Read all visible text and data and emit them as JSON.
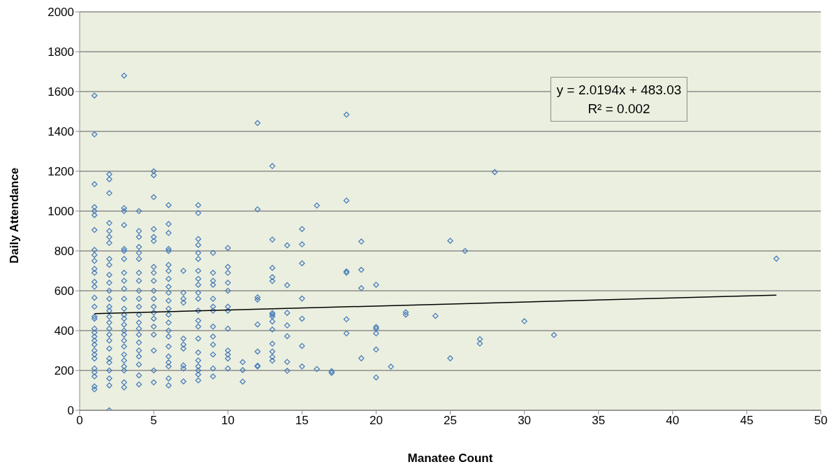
{
  "chart_data": {
    "type": "scatter",
    "xlabel": "Manatee Count",
    "ylabel": "Daily Attendance",
    "xlim": [
      0,
      50
    ],
    "xticks": [
      0,
      5,
      10,
      15,
      20,
      25,
      30,
      35,
      40,
      45,
      50
    ],
    "ylim": [
      0,
      2000
    ],
    "yticks": [
      0,
      200,
      400,
      600,
      800,
      1000,
      1200,
      1400,
      1600,
      1800,
      2000
    ],
    "grid": "y",
    "legend": false,
    "annotations": [
      "y = 2.0194x + 483.03",
      "R² = 0.002"
    ],
    "series": [
      {
        "color": "#4a7ebb",
        "marker": "diamond",
        "x": [
          1,
          1,
          1,
          1,
          1,
          1,
          1,
          1,
          1,
          1,
          1,
          1,
          1,
          1,
          1,
          1,
          1,
          1,
          1,
          1,
          1,
          1,
          1,
          1,
          1,
          1,
          1,
          1,
          1,
          1,
          1,
          2,
          2,
          2,
          2,
          2,
          2,
          2,
          2,
          2,
          2,
          2,
          2,
          2,
          2,
          2,
          2,
          2,
          2,
          2,
          2,
          2,
          2,
          2,
          2,
          2,
          2,
          2,
          3,
          3,
          3,
          3,
          3,
          3,
          3,
          3,
          3,
          3,
          3,
          3,
          3,
          3,
          3,
          3,
          3,
          3,
          3,
          3,
          3,
          3,
          3,
          3,
          3,
          4,
          4,
          4,
          4,
          4,
          4,
          4,
          4,
          4,
          4,
          4,
          4,
          4,
          4,
          4,
          4,
          4,
          4,
          4,
          4,
          4,
          5,
          5,
          5,
          5,
          5,
          5,
          5,
          5,
          5,
          5,
          5,
          5,
          5,
          5,
          5,
          5,
          5,
          5,
          5,
          6,
          6,
          6,
          6,
          6,
          6,
          6,
          6,
          6,
          6,
          6,
          6,
          6,
          6,
          6,
          6,
          6,
          6,
          6,
          6,
          6,
          6,
          7,
          7,
          7,
          7,
          7,
          7,
          7,
          7,
          7,
          7,
          8,
          8,
          8,
          8,
          8,
          8,
          8,
          8,
          8,
          8,
          8,
          8,
          8,
          8,
          8,
          8,
          8,
          8,
          8,
          8,
          8,
          9,
          9,
          9,
          9,
          9,
          9,
          9,
          9,
          9,
          9,
          9,
          9,
          9,
          10,
          10,
          10,
          10,
          10,
          10,
          10,
          10,
          10,
          10,
          10,
          10,
          11,
          11,
          11,
          12,
          12,
          12,
          12,
          12,
          12,
          12,
          12,
          13,
          13,
          13,
          13,
          13,
          13,
          13,
          13,
          13,
          13,
          13,
          13,
          13,
          13,
          14,
          14,
          14,
          14,
          14,
          14,
          14,
          15,
          15,
          15,
          15,
          15,
          15,
          15,
          16,
          16,
          17,
          17,
          18,
          18,
          18,
          18,
          18,
          18,
          19,
          19,
          19,
          19,
          20,
          20,
          20,
          20,
          20,
          20,
          21,
          22,
          22,
          24,
          25,
          25,
          26,
          27,
          27,
          28,
          30,
          32,
          47
        ],
        "values": [
          1580,
          1385,
          1135,
          1020,
          1000,
          980,
          905,
          805,
          780,
          750,
          710,
          690,
          645,
          620,
          565,
          520,
          470,
          460,
          410,
          390,
          370,
          350,
          330,
          300,
          280,
          260,
          210,
          190,
          170,
          120,
          105,
          1185,
          1160,
          1090,
          940,
          900,
          870,
          840,
          760,
          730,
          680,
          640,
          600,
          560,
          520,
          500,
          470,
          440,
          410,
          380,
          350,
          310,
          260,
          240,
          200,
          160,
          125,
          0,
          1680,
          1015,
          1000,
          930,
          810,
          800,
          760,
          690,
          650,
          610,
          560,
          510,
          480,
          460,
          430,
          400,
          380,
          350,
          320,
          280,
          250,
          220,
          200,
          140,
          115,
          1000,
          900,
          870,
          820,
          790,
          760,
          690,
          650,
          600,
          560,
          520,
          480,
          440,
          410,
          380,
          340,
          300,
          270,
          230,
          175,
          130,
          1200,
          1180,
          1070,
          910,
          870,
          850,
          720,
          690,
          650,
          600,
          560,
          520,
          490,
          460,
          420,
          380,
          300,
          200,
          140,
          1030,
          935,
          890,
          810,
          800,
          730,
          700,
          660,
          620,
          590,
          550,
          510,
          480,
          440,
          400,
          370,
          320,
          270,
          240,
          220,
          160,
          125,
          700,
          590,
          560,
          540,
          360,
          330,
          310,
          225,
          210,
          145,
          1030,
          990,
          860,
          830,
          790,
          760,
          700,
          660,
          630,
          590,
          560,
          500,
          450,
          420,
          360,
          290,
          250,
          220,
          200,
          180,
          150,
          790,
          690,
          650,
          630,
          560,
          520,
          500,
          420,
          370,
          330,
          280,
          210,
          170,
          815,
          720,
          690,
          640,
          600,
          520,
          500,
          410,
          300,
          280,
          260,
          210,
          242,
          202,
          144,
          1442,
          1009,
          567,
          555,
          431,
          295,
          224,
          220,
          1226,
          857,
          715,
          668,
          649,
          488,
          480,
          470,
          446,
          405,
          334,
          295,
          268,
          249,
          828,
          628,
          489,
          426,
          372,
          243,
          198,
          910,
          833,
          738,
          561,
          460,
          323,
          220,
          1028,
          207,
          196,
          188,
          1484,
          1053,
          697,
          690,
          457,
          386,
          847,
          705,
          613,
          261,
          630,
          418,
          410,
          386,
          305,
          165,
          219,
          492,
          480,
          474,
          851,
          261,
          800,
          357,
          335,
          1196,
          447,
          378,
          761
        ]
      },
      {
        "type": "line",
        "color": "#000000",
        "marker": "none",
        "x": [
          1,
          47
        ],
        "values": [
          485,
          578
        ]
      }
    ]
  }
}
